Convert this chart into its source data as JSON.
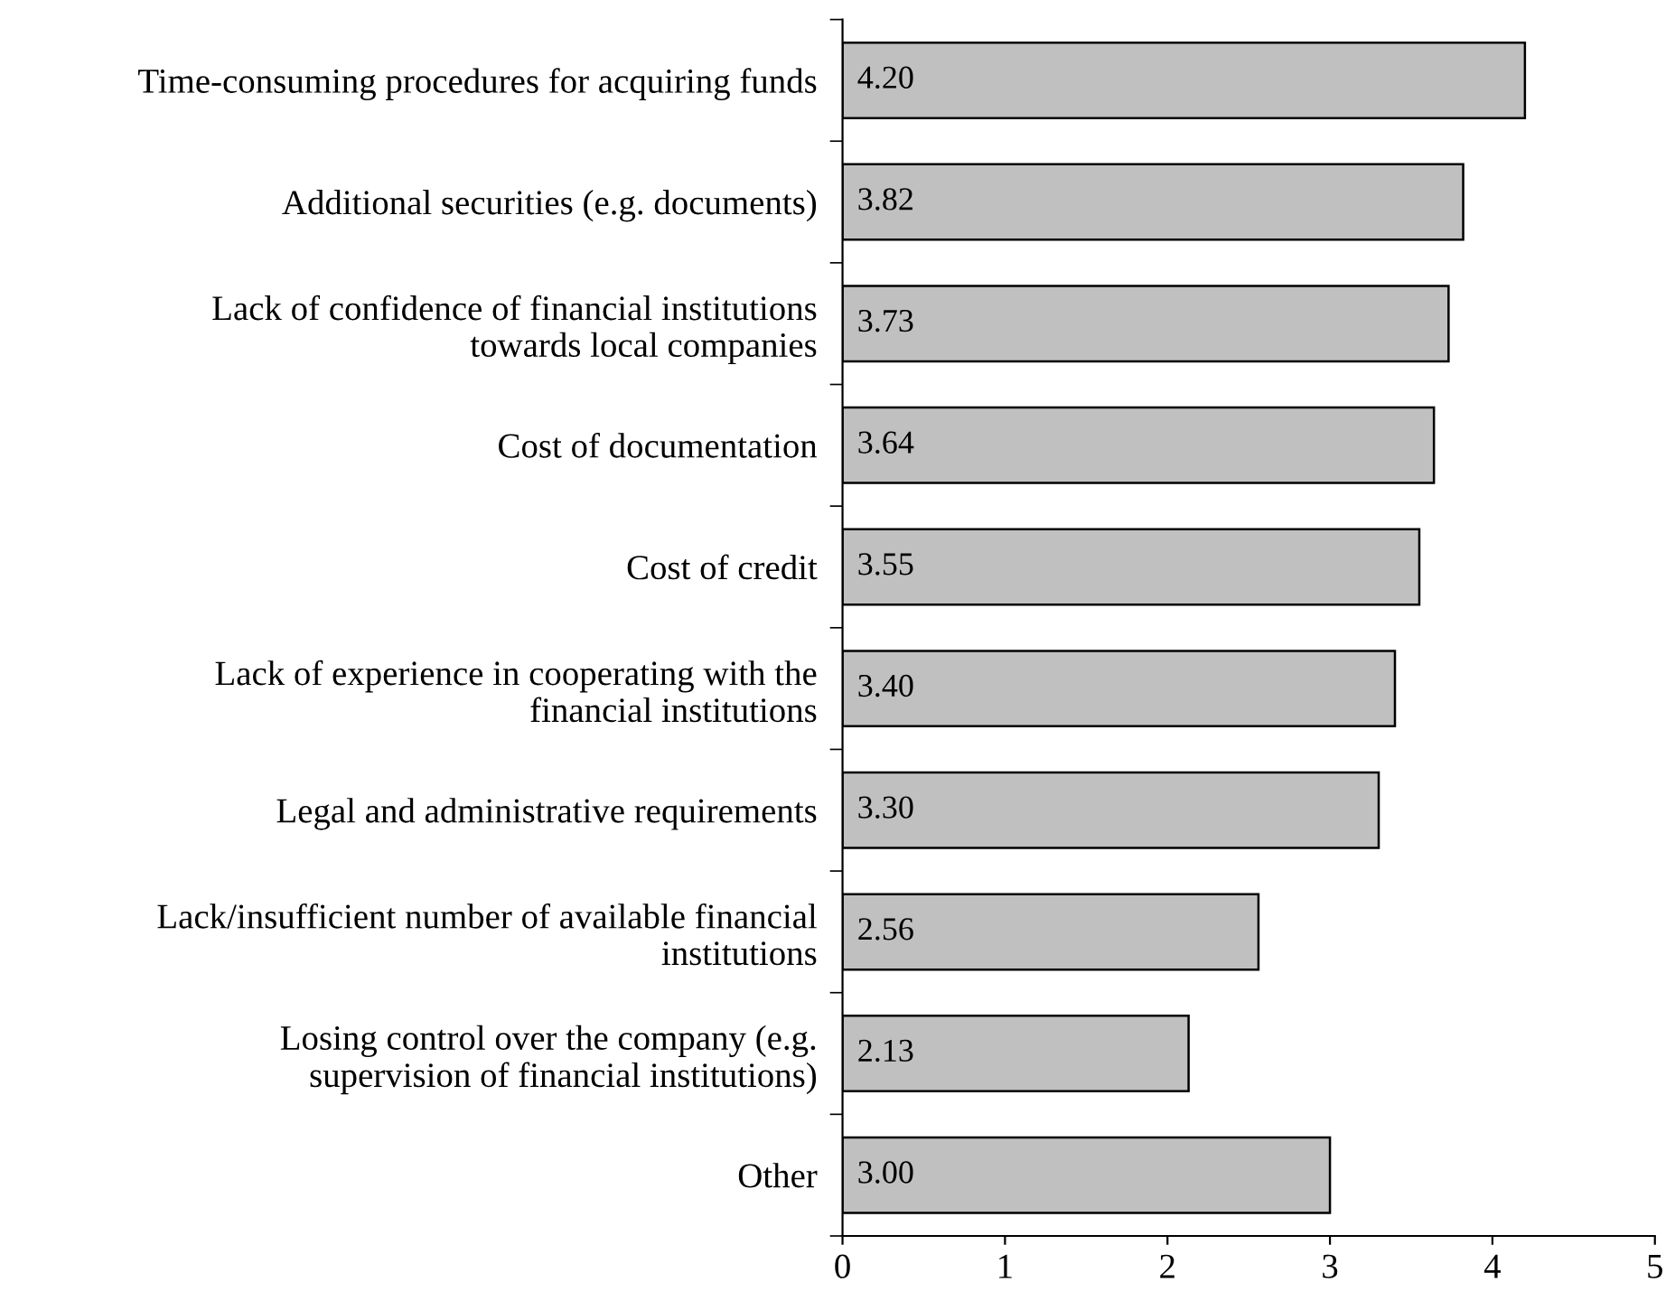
{
  "chart_data": {
    "type": "bar",
    "orientation": "horizontal",
    "categories": [
      "Time-consuming procedures for acquiring funds",
      "Additional securities (e.g. documents)",
      "Lack of confidence of financial institutions\ntowards local companies",
      "Cost of documentation",
      "Cost of credit",
      "Lack of experience in cooperating with the\nfinancial institutions",
      "Legal and administrative requirements",
      "Lack/insufficient number of available financial\ninstitutions",
      "Losing control over the company (e.g.\nsupervision of financial institutions)",
      "Other"
    ],
    "values": [
      4.2,
      3.82,
      3.73,
      3.64,
      3.55,
      3.4,
      3.3,
      2.56,
      2.13,
      3.0
    ],
    "value_labels": [
      "4.20",
      "3.82",
      "3.73",
      "3.64",
      "3.55",
      "3.40",
      "3.30",
      "2.56",
      "2.13",
      "3.00"
    ],
    "color": "#c0c0c0",
    "xlim": [
      0,
      5
    ],
    "xticks": [
      0,
      1,
      2,
      3,
      4,
      5
    ],
    "grid": false
  }
}
